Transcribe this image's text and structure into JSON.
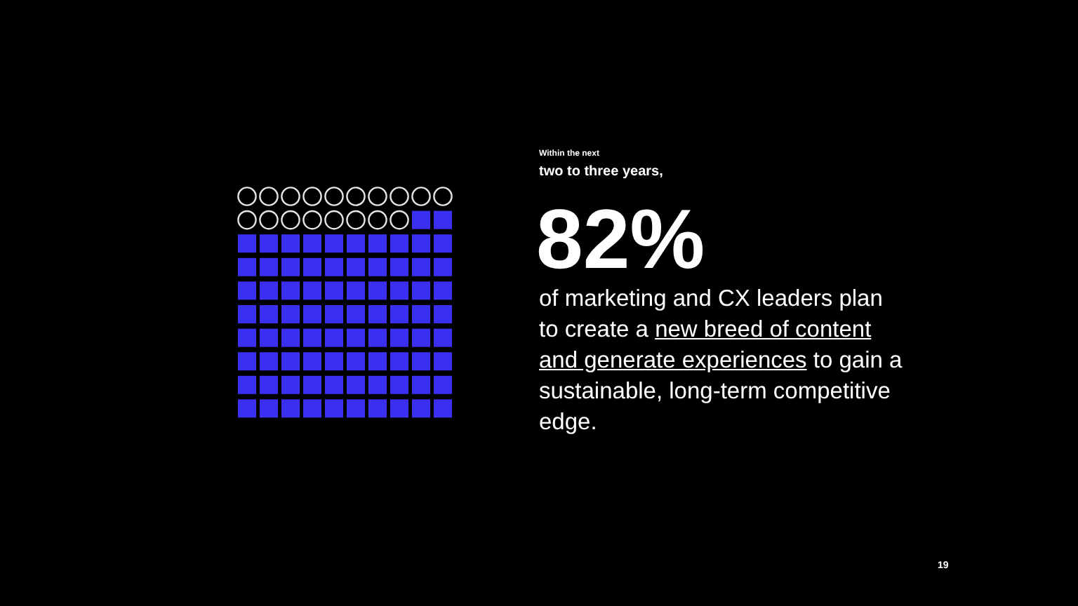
{
  "chart_data": {
    "type": "other",
    "values": [
      82
    ],
    "value_labels": [
      "82%"
    ],
    "colors": [
      "#3b2ff2"
    ],
    "annotations": [
      "Within the next",
      "two to three years,",
      "of marketing and CX leaders plan to create a ",
      "new breed of content and generate experiences",
      " to gain a sustainable, long-term competitive edge.",
      "19"
    ]
  }
}
